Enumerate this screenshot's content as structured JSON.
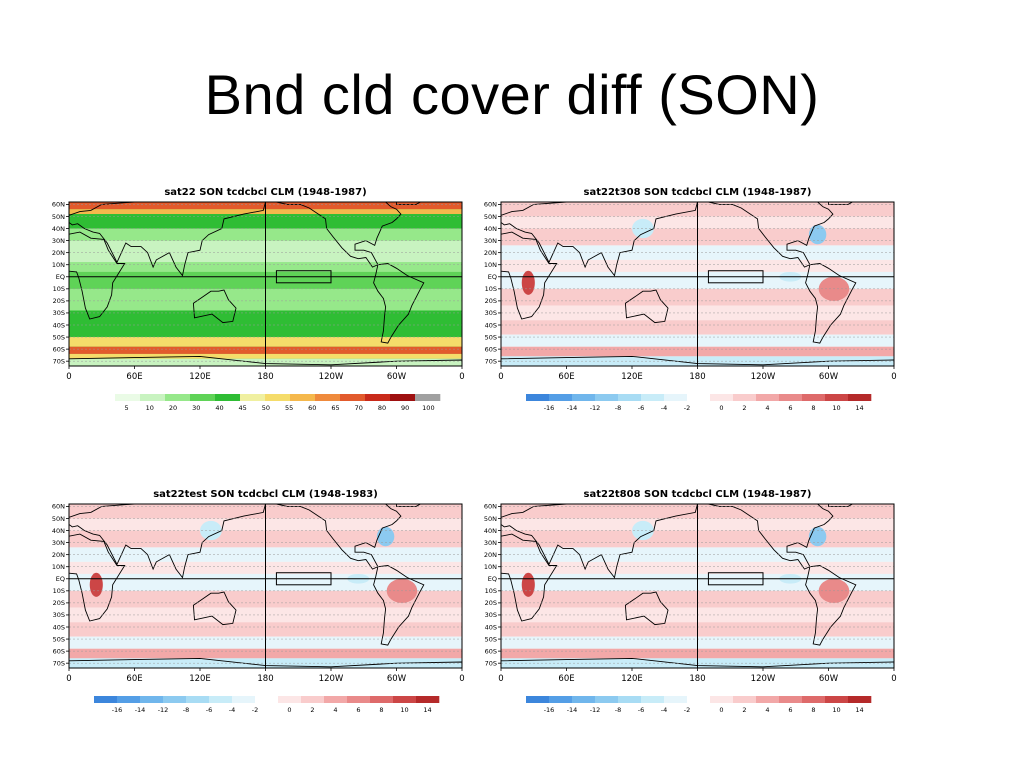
{
  "slide": {
    "title": "Bnd cld cover diff (SON)"
  },
  "axes": {
    "lat_labels": [
      "60N",
      "50N",
      "40N",
      "30N",
      "20N",
      "10N",
      "EQ",
      "10S",
      "20S",
      "30S",
      "40S",
      "50S",
      "60S",
      "70S"
    ],
    "lon_labels": [
      "0",
      "60E",
      "120E",
      "180",
      "120W",
      "60W",
      "0"
    ]
  },
  "colors": {
    "land_outline": "#000000",
    "grid": "#9a9a9a",
    "pos_ramp": [
      "#fce6e6",
      "#f9cccc",
      "#f2a8a8",
      "#e98a8a",
      "#de6a6a",
      "#cc4646",
      "#b52a2a"
    ],
    "neg_ramp": [
      "#e6f5fb",
      "#c8ecf8",
      "#a8dcf4",
      "#8ccaf0",
      "#70b6ec",
      "#549ee6",
      "#3c86dc"
    ],
    "abs_ramp": [
      "#eafbe6",
      "#c8f3c0",
      "#96e88a",
      "#5fd357",
      "#2fbd34",
      "#f0f0a0",
      "#f5dc6a",
      "#f5b84c",
      "#ef8a3c",
      "#e25a2c",
      "#c92a1a",
      "#9e1010",
      "#a0a0a0"
    ]
  },
  "panels": [
    {
      "title": "sat22 SON tcdcbcl CLM (1948-1987)",
      "type": "absolute",
      "colorbar_labels": [
        "5",
        "10",
        "20",
        "30",
        "40",
        "45",
        "50",
        "55",
        "60",
        "65",
        "70",
        "80",
        "90",
        "100"
      ]
    },
    {
      "title": "sat22t308 SON tcdcbcl CLM (1948-1987)",
      "type": "difference",
      "colorbar_labels": [
        "-16",
        "-14",
        "-12",
        "-8",
        "-6",
        "-4",
        "-2",
        "0",
        "2",
        "4",
        "6",
        "8",
        "10",
        "14"
      ]
    },
    {
      "title": "sat22test SON tcdcbcl CLM (1948-1983)",
      "type": "difference",
      "colorbar_labels": [
        "-16",
        "-14",
        "-12",
        "-8",
        "-6",
        "-4",
        "-2",
        "0",
        "2",
        "4",
        "6",
        "8",
        "10",
        "14"
      ]
    },
    {
      "title": "sat22t808 SON tcdcbcl CLM (1948-1987)",
      "type": "difference",
      "colorbar_labels": [
        "-16",
        "-14",
        "-12",
        "-8",
        "-6",
        "-4",
        "-2",
        "0",
        "2",
        "4",
        "6",
        "8",
        "10",
        "14"
      ]
    }
  ]
}
